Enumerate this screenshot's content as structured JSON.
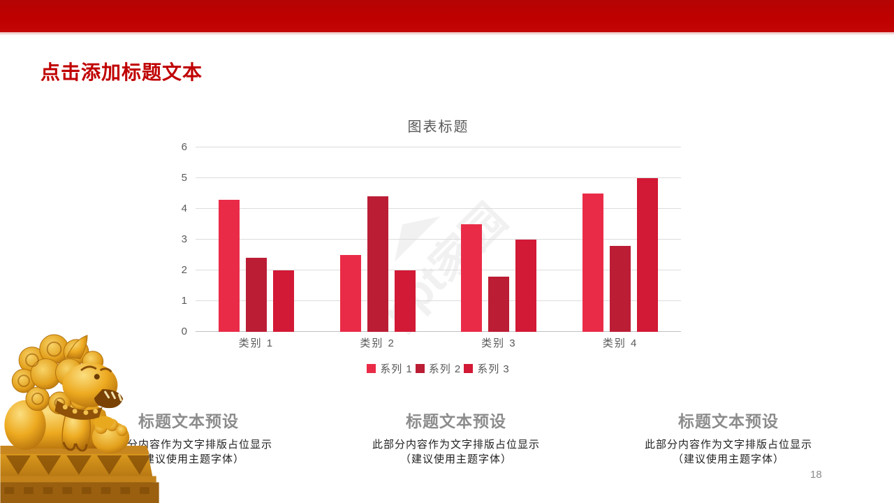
{
  "banner": {
    "color": "#C00000"
  },
  "title": "点击添加标题文本",
  "watermark": "ppt家园",
  "chart_data": {
    "type": "bar",
    "title": "图表标题",
    "categories": [
      "类别 1",
      "类别 2",
      "类别 3",
      "类别 4"
    ],
    "series": [
      {
        "name": "系列 1",
        "color": "#EA2B47",
        "values": [
          4.3,
          2.5,
          3.5,
          4.5
        ]
      },
      {
        "name": "系列 2",
        "color": "#BB1D35",
        "values": [
          2.4,
          4.4,
          1.8,
          2.8
        ]
      },
      {
        "name": "系列 3",
        "color": "#D21935",
        "values": [
          2.0,
          2.0,
          3.0,
          5.0
        ]
      }
    ],
    "ylim": [
      0,
      6
    ],
    "ytick_interval": 1,
    "grid": true,
    "legend_position": "bottom",
    "axis_text_color": "#595959",
    "grid_color": "#DCDCDC"
  },
  "text_blocks": [
    {
      "heading": "标题文本预设",
      "line1": "此部分内容作为文字排版占位显示",
      "line2": "（建议使用主题字体）"
    },
    {
      "heading": "标题文本预设",
      "line1": "此部分内容作为文字排版占位显示",
      "line2": "（建议使用主题字体）"
    },
    {
      "heading": "标题文本预设",
      "line1": "此部分内容作为文字排版占位显示",
      "line2": "（建议使用主题字体）"
    }
  ],
  "page_number": "18"
}
